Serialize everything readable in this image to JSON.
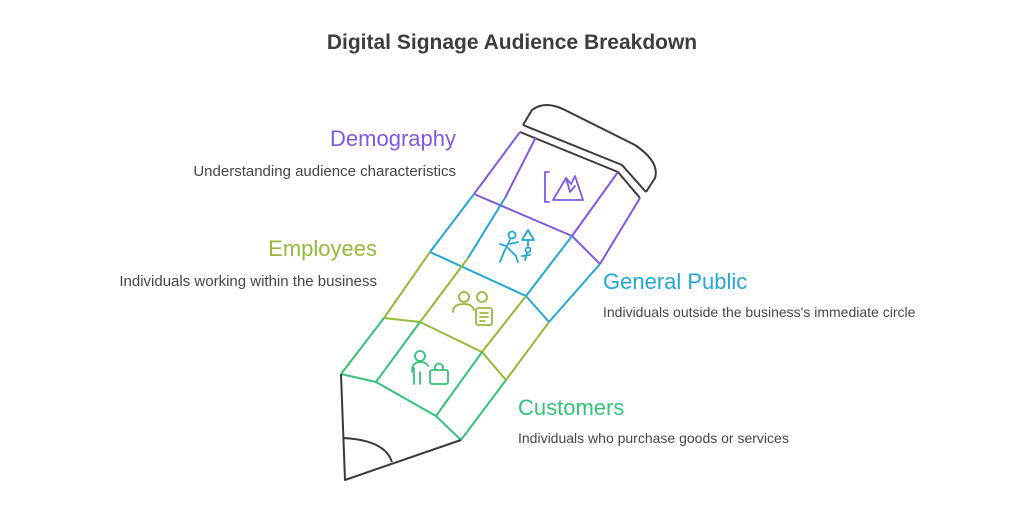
{
  "title": "Digital Signage Audience Breakdown",
  "colors": {
    "demography": "#8159e0",
    "general_public": "#22a7d3",
    "employees": "#95b93a",
    "customers": "#35c279",
    "outline": "#3a3a3a"
  },
  "sections": {
    "demography": {
      "heading": "Demography",
      "description": "Understanding audience characteristics",
      "icon": "mountain-chart-icon"
    },
    "general_public": {
      "heading": "General Public",
      "description": "Individuals outside the business's immediate circle",
      "icon": "people-outdoors-icon"
    },
    "employees": {
      "heading": "Employees",
      "description": "Individuals working within the business",
      "icon": "employees-badge-icon"
    },
    "customers": {
      "heading": "Customers",
      "description": "Individuals who purchase goods or services",
      "icon": "shopper-bag-icon"
    }
  }
}
